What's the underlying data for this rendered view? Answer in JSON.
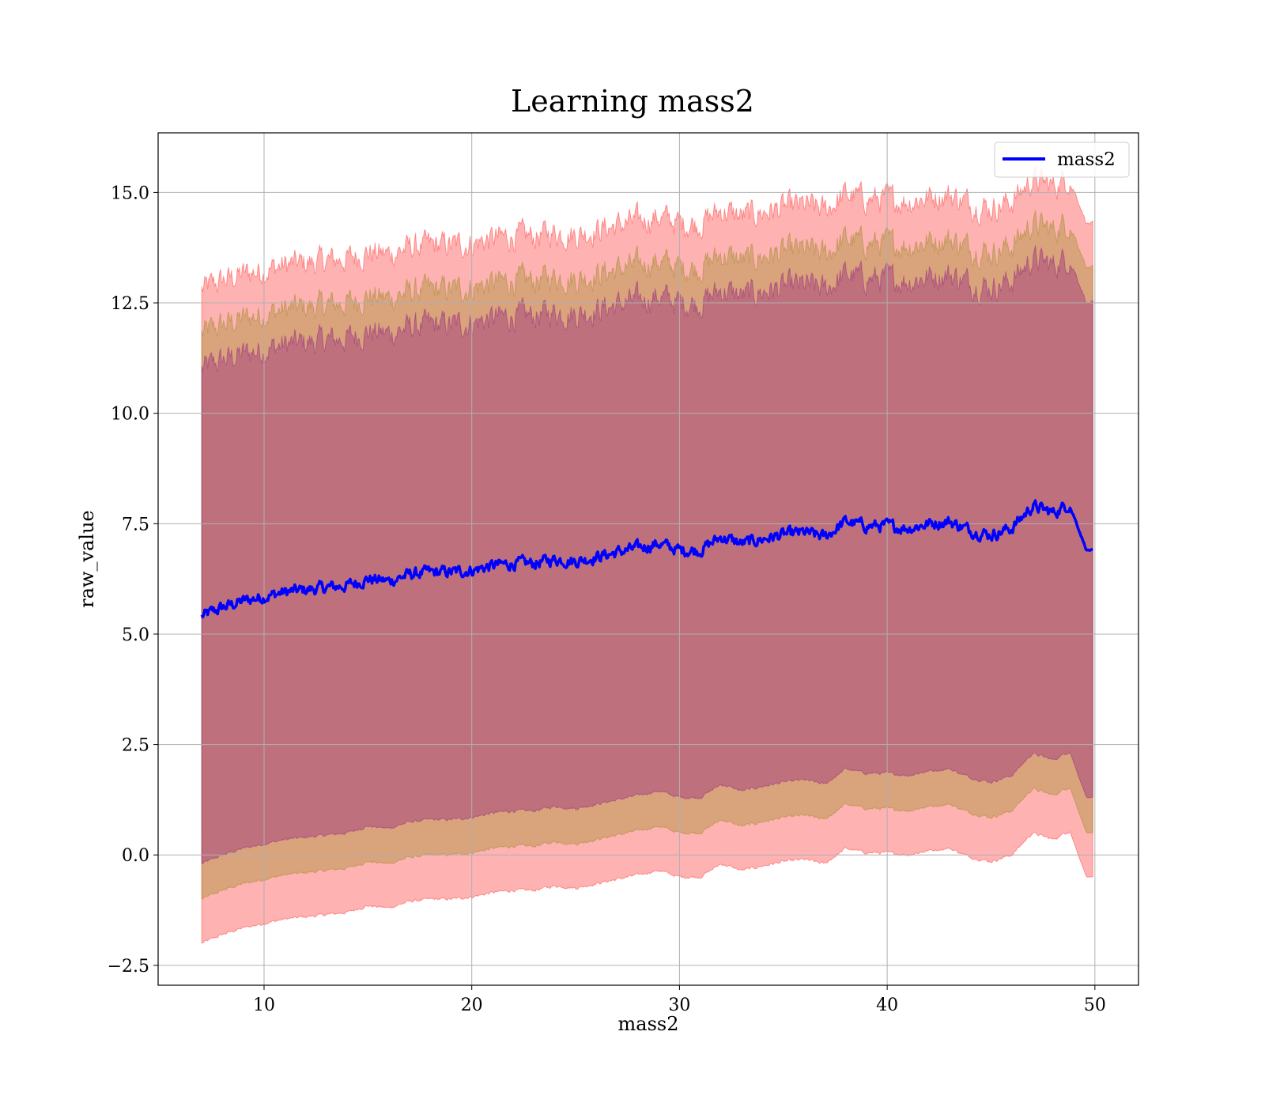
{
  "chart_data": {
    "type": "line",
    "title": "Learning mass2",
    "xlabel": "mass2",
    "ylabel": "raw_value",
    "xlim": [
      4.9,
      52.1
    ],
    "ylim": [
      -2.95,
      16.35
    ],
    "xticks": [
      10,
      20,
      30,
      40,
      50
    ],
    "yticks": [
      -2.5,
      0.0,
      2.5,
      5.0,
      7.5,
      10.0,
      12.5,
      15.0
    ],
    "ytick_labels": [
      "−2.5",
      "0.0",
      "2.5",
      "5.0",
      "7.5",
      "10.0",
      "12.5",
      "15.0"
    ],
    "grid": true,
    "legend_position": "upper right",
    "x_start": 7.0,
    "x_end": 49.9,
    "series": [
      {
        "name": "mass2",
        "color": "#0000ff",
        "x": [
          7.0,
          8.0,
          9.0,
          10.0,
          11.0,
          12.0,
          13.0,
          14.0,
          15.0,
          16.0,
          17.0,
          18.0,
          19.0,
          20.0,
          21.0,
          22.0,
          23.0,
          24.0,
          25.0,
          26.0,
          27.0,
          28.0,
          29.0,
          30.0,
          31.0,
          32.0,
          33.0,
          34.0,
          35.0,
          36.0,
          37.0,
          38.0,
          39.0,
          40.0,
          41.0,
          42.0,
          43.0,
          44.0,
          45.0,
          46.0,
          47.0,
          48.0,
          48.8,
          49.2,
          49.6,
          49.9
        ],
        "y": [
          5.4,
          5.6,
          5.75,
          5.85,
          5.95,
          6.0,
          6.05,
          6.1,
          6.25,
          6.2,
          6.35,
          6.4,
          6.4,
          6.45,
          6.55,
          6.6,
          6.6,
          6.7,
          6.65,
          6.75,
          6.85,
          6.95,
          7.05,
          6.9,
          6.9,
          7.2,
          7.05,
          7.15,
          7.25,
          7.3,
          7.2,
          7.55,
          7.45,
          7.45,
          7.4,
          7.5,
          7.55,
          7.35,
          7.25,
          7.4,
          7.9,
          7.75,
          7.95,
          7.4,
          6.9,
          6.9
        ]
      }
    ],
    "bands": [
      {
        "color": "#ff0000",
        "opacity": 0.3,
        "offset": 7.4
      },
      {
        "color": "#808000",
        "opacity": 0.3,
        "offset": 6.4
      },
      {
        "color": "#800080",
        "opacity": 0.3,
        "offset": 5.6
      }
    ]
  }
}
